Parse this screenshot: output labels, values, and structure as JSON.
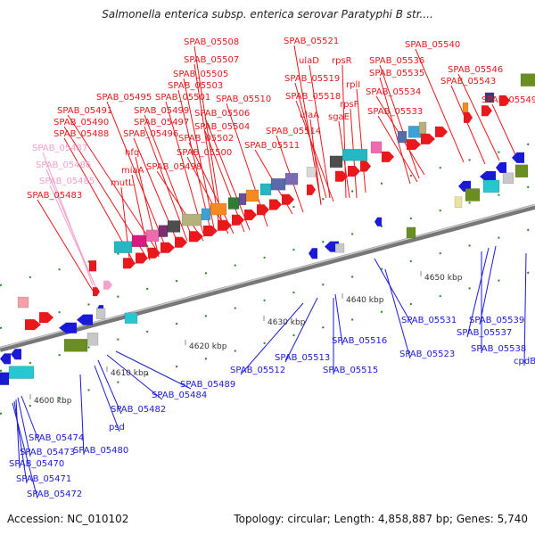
{
  "title": "Salmonella enterica subsp. enterica serovar Paratyphi B str....",
  "footer": {
    "accession": "Accession: NC_010102",
    "summary": "Topology: circular; Length: 4,858,887 bp; Genes: 5,740"
  },
  "colors": {
    "upper_labels": "#e8181c",
    "faded_labels": "#f4a0cc",
    "lower_labels": "#1a1ad6",
    "backbone": "#888888",
    "tick": "#1f8a1f"
  },
  "ticks": [
    "4600 kbp",
    "4610 kbp",
    "4620 kbp",
    "4630 kbp",
    "4640 kbp",
    "4650 kbp"
  ],
  "upper_labels": [
    "SPAB_05508",
    "SPAB_05521",
    "SPAB_05540",
    "SPAB_05507",
    "ulaD",
    "rpsR",
    "SPAB_05536",
    "SPAB_05505",
    "SPAB_05535",
    "SPAB_05546",
    "SPAB_05503",
    "SPAB_05519",
    "rplI",
    "SPAB_05543",
    "SPAB_05495",
    "SPAB_05501",
    "SPAB_05510",
    "SPAB_05518",
    "SPAB_05534",
    "SPAB_05549",
    "SPAB_05491",
    "SPAB_05499",
    "SPAB_05506",
    "rpsF",
    "SPAB_05533",
    "SPAB_05490",
    "SPAB_05497",
    "SPAB_05504",
    "ulaA",
    "sgaE",
    "SPAB_05488",
    "SPAB_05496",
    "SPAB_05502",
    "SPAB_05514",
    "hfq",
    "SPAB_05500",
    "SPAB_05511",
    "miaA",
    "SPAB_05498",
    "mutL",
    "SPAB_05483"
  ],
  "faded_labels": [
    "SPAB_05487",
    "SPAB_05486",
    "SPAB_05485"
  ],
  "lower_labels": [
    "SPAB_05531",
    "SPAB_05539",
    "SPAB_05537",
    "SPAB_05538",
    "cpdB",
    "SPAB_05516",
    "SPAB_05523",
    "SPAB_05513",
    "SPAB_05512",
    "SPAB_05515",
    "SPAB_05489",
    "SPAB_05484",
    "SPAB_05482",
    "psd",
    "SPAB_05480",
    "SPAB_05474",
    "SPAB_05473",
    "SPAB_05470",
    "SPAB_05471",
    "SPAB_05472"
  ]
}
